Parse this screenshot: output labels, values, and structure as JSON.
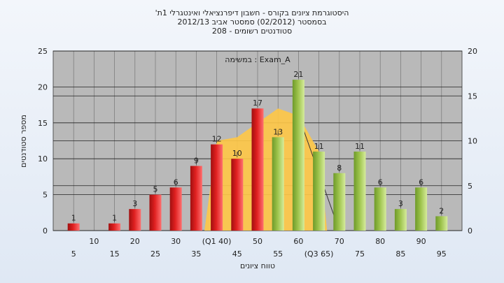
{
  "title": {
    "line1": "'היסטוגרמת ציונים בקורס - חשבון דיפרנציאלי ואינטגרלי 1ת",
    "line2": "בסמסטר  (02/2012)  סמסטר אביב 2012/13",
    "line3": "208 - סטודנטים רשומים"
  },
  "legend_text": "במשימה : Exam_A",
  "colors": {
    "plot_bg": "#b9b9b9",
    "red_bar": "#e02020",
    "green_bar": "#9cc24a",
    "area_fill": "#ffc846"
  },
  "chart_data": {
    "type": "bar",
    "title": "'היסטוגרמת ציונים בקורס - חשבון דיפרנציאלי ואינטגרלי 1ת",
    "xlabel": "טווח ציונים",
    "ylabel": "מספר סטודנטים",
    "ylim": [
      0,
      25
    ],
    "y2lim": [
      0,
      20
    ],
    "yticks": [
      0,
      5,
      10,
      15,
      20,
      25
    ],
    "y2ticks": [
      0,
      5,
      10,
      15,
      20
    ],
    "x_tick_labels_lower": [
      "5",
      "15",
      "25",
      "35",
      "45",
      "55",
      "(Q3 65)",
      "75",
      "85",
      "95"
    ],
    "x_tick_labels_upper": [
      "10",
      "20",
      "30",
      "(Q1 40)",
      "50",
      "60",
      "70",
      "80",
      "90"
    ],
    "categories": [
      5,
      10,
      15,
      20,
      25,
      30,
      35,
      40,
      45,
      50,
      55,
      60,
      65,
      70,
      75,
      80,
      85,
      90,
      95
    ],
    "values": [
      1,
      0,
      1,
      3,
      5,
      6,
      9,
      12,
      10,
      17,
      13,
      21,
      11,
      8,
      11,
      6,
      3,
      6,
      2
    ],
    "bar_colors": [
      "red",
      "red",
      "red",
      "red",
      "red",
      "red",
      "red",
      "red",
      "red",
      "red",
      "green",
      "green",
      "green",
      "green",
      "green",
      "green",
      "green",
      "green",
      "green"
    ],
    "bar_labels": [
      "1",
      "",
      "1",
      "3",
      "5",
      "6",
      "9",
      "12",
      "10",
      "17",
      "13",
      "21",
      "11",
      "8",
      "11",
      "6",
      "3",
      "6",
      "2"
    ],
    "distribution_area": {
      "x": [
        37,
        40,
        45,
        50,
        55,
        60,
        65,
        67
      ],
      "y": [
        0,
        12.5,
        13,
        15,
        17,
        16,
        11,
        0
      ]
    },
    "grid": true
  }
}
